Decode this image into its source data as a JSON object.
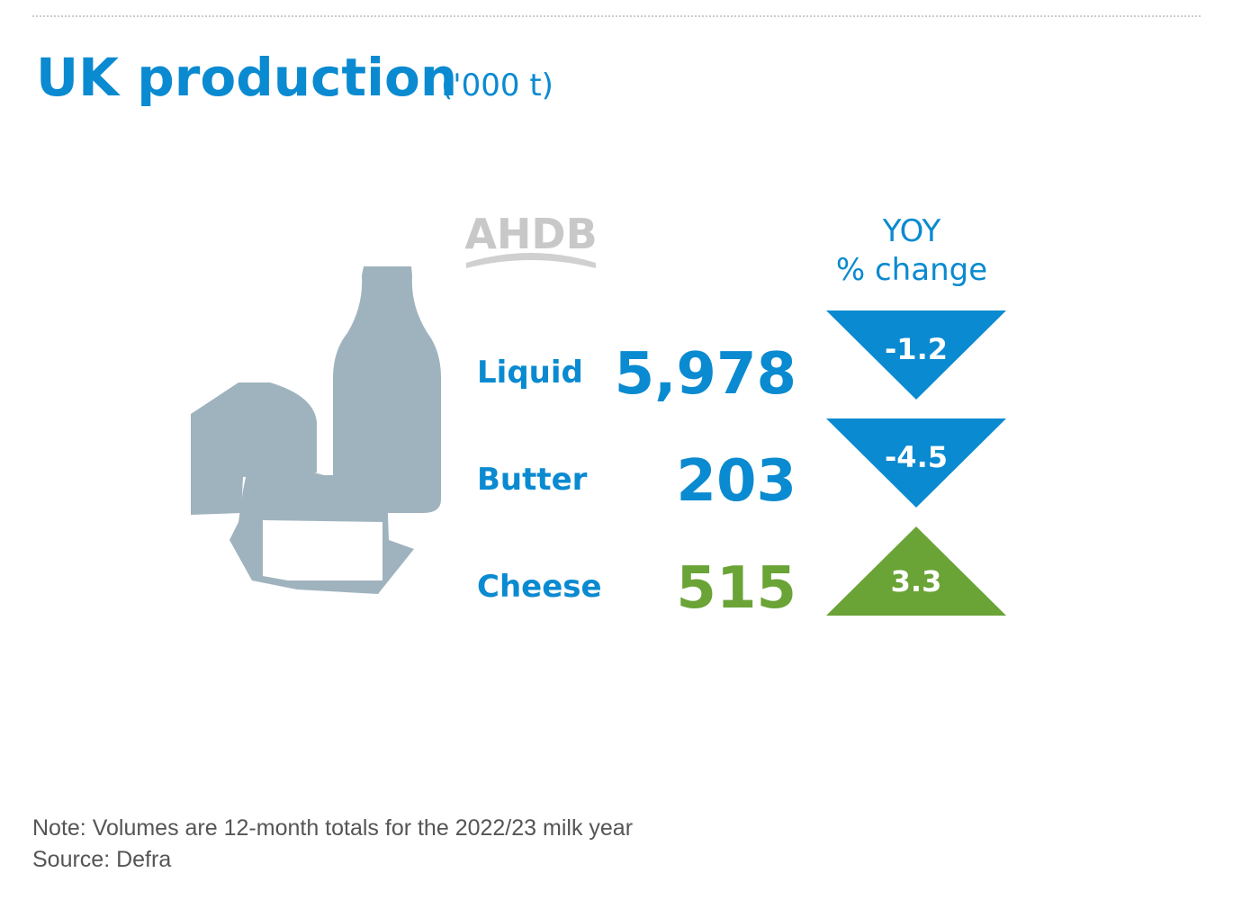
{
  "header": {
    "title": "UK production",
    "unit": "('000 t)"
  },
  "logo": "AHDB",
  "yoy_header": [
    "YOY",
    "% change"
  ],
  "rows": [
    {
      "label": "Liquid",
      "value": "5,978",
      "change": -1.2,
      "color": "#0a8ad0"
    },
    {
      "label": "Butter",
      "value": "203",
      "change": -4.5,
      "color": "#0a8ad0"
    },
    {
      "label": "Cheese",
      "value": "515",
      "change": 3.3,
      "color": "#6aa336"
    }
  ],
  "footer": {
    "note": "Note: Volumes are 12-month totals for the 2022/23 milk year",
    "source": "Source: Defra"
  }
}
